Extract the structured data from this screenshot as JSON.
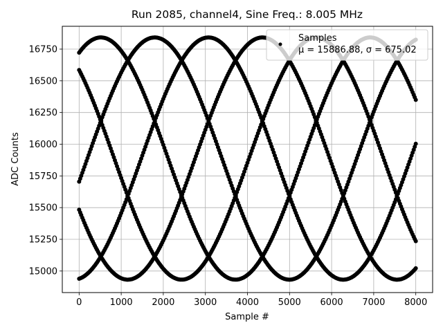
{
  "chart_data": {
    "type": "scatter",
    "title": "Run 2085, channel4, Sine Freq.: 8.005 MHz",
    "xlabel": "Sample #",
    "ylabel": "ADC Counts",
    "xlim": [
      -400,
      8400
    ],
    "ylim": [
      14830,
      16930
    ],
    "xticks": [
      0,
      1000,
      2000,
      3000,
      4000,
      5000,
      6000,
      7000,
      8000
    ],
    "xtick_labels": [
      "0",
      "1000",
      "2000",
      "3000",
      "4000",
      "5000",
      "6000",
      "7000",
      "8000"
    ],
    "yticks": [
      15000,
      15250,
      15500,
      15750,
      16000,
      16250,
      16500,
      16750
    ],
    "ytick_labels": [
      "15000",
      "15250",
      "15500",
      "15750",
      "16000",
      "16250",
      "16500",
      "16750"
    ],
    "grid": true,
    "legend_position": "upper-right",
    "marker_color": "#000000",
    "series": [
      {
        "name": "Samples",
        "stats_label": "μ = 15886.88, σ = 675.02",
        "model": {
          "form": "mean + amplitude * sin(2*pi*x/period + phase_k)",
          "mean": 15886.88,
          "amplitude": 955,
          "period": 6400,
          "phases_deg": [
            -11,
            61,
            133,
            205,
            277
          ],
          "x_range": [
            0,
            8000
          ]
        }
      }
    ]
  }
}
